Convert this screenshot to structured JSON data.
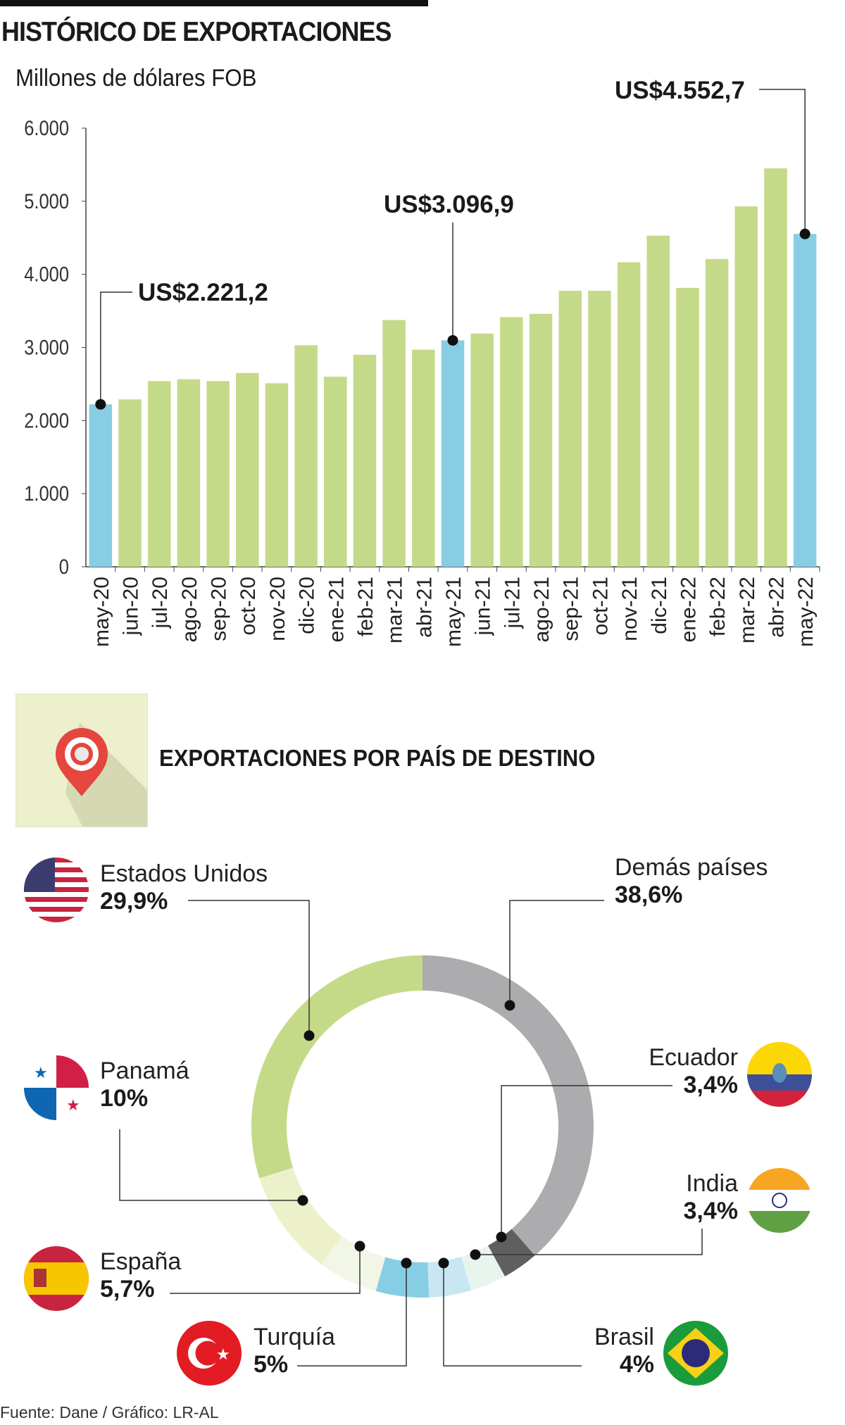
{
  "header": {
    "title": "HISTÓRICO DE EXPORTACIONES",
    "subtitle": "Millones de dólares FOB"
  },
  "chart_data": [
    {
      "type": "bar",
      "title": "HISTÓRICO DE EXPORTACIONES",
      "ylabel": "Millones de dólares FOB",
      "ylim": [
        0,
        6000
      ],
      "yticks": [
        "0",
        "1.000",
        "2.000",
        "3.000",
        "4.000",
        "5.000",
        "6.000"
      ],
      "ytick_values": [
        0,
        1000,
        2000,
        3000,
        4000,
        5000,
        6000
      ],
      "categories": [
        "may-20",
        "jun-20",
        "jul-20",
        "ago-20",
        "sep-20",
        "oct-20",
        "nov-20",
        "dic-20",
        "ene-21",
        "feb-21",
        "mar-21",
        "abr-21",
        "may-21",
        "jun-21",
        "jul-21",
        "ago-21",
        "sep-21",
        "oct-21",
        "nov-21",
        "dic-21",
        "ene-22",
        "feb-22",
        "mar-22",
        "abr-22",
        "may-22"
      ],
      "values": [
        2221.2,
        2290,
        2540,
        2565,
        2540,
        2650,
        2510,
        3030,
        2600,
        2900,
        3375,
        2970,
        3096.9,
        3190,
        3415,
        3460,
        3775,
        3775,
        4165,
        4530,
        3815,
        4210,
        4930,
        5450,
        4552.7
      ],
      "highlight": [
        0,
        12,
        24
      ],
      "colors": {
        "normal": "#c5da88",
        "highlight": "#87cde4"
      },
      "annotations": [
        {
          "index": 0,
          "label": "US$2.221,2"
        },
        {
          "index": 12,
          "label": "US$3.096,9"
        },
        {
          "index": 24,
          "label": "US$4.552,7"
        }
      ]
    },
    {
      "type": "pie",
      "title": "EXPORTACIONES POR PAÍS DE DESTINO",
      "slices": [
        {
          "name": "Demás países",
          "pct_label": "38,6%",
          "value": 38.6,
          "color": "#acabad"
        },
        {
          "name": "Ecuador",
          "pct_label": "3,4%",
          "value": 3.4,
          "color": "#5f5f5f"
        },
        {
          "name": "India",
          "pct_label": "3,4%",
          "value": 3.4,
          "color": "#e8f4ee"
        },
        {
          "name": "Brasil",
          "pct_label": "4%",
          "value": 4,
          "color": "#c8e7f2"
        },
        {
          "name": "Turquía",
          "pct_label": "5%",
          "value": 5,
          "color": "#87cde4"
        },
        {
          "name": "España",
          "pct_label": "5,7%",
          "value": 5.7,
          "color": "#f1f6e6"
        },
        {
          "name": "Panamá",
          "pct_label": "10%",
          "value": 10,
          "color": "#ecf1cb"
        },
        {
          "name": "Estados Unidos",
          "pct_label": "29,9%",
          "value": 29.9,
          "color": "#c5da88"
        }
      ]
    }
  ],
  "section2": {
    "title": "EXPORTACIONES POR PAÍS DE DESTINO",
    "icon": "location-pin-icon"
  },
  "footer": {
    "source": "Fuente: Dane / Gráfico: LR-AL"
  }
}
